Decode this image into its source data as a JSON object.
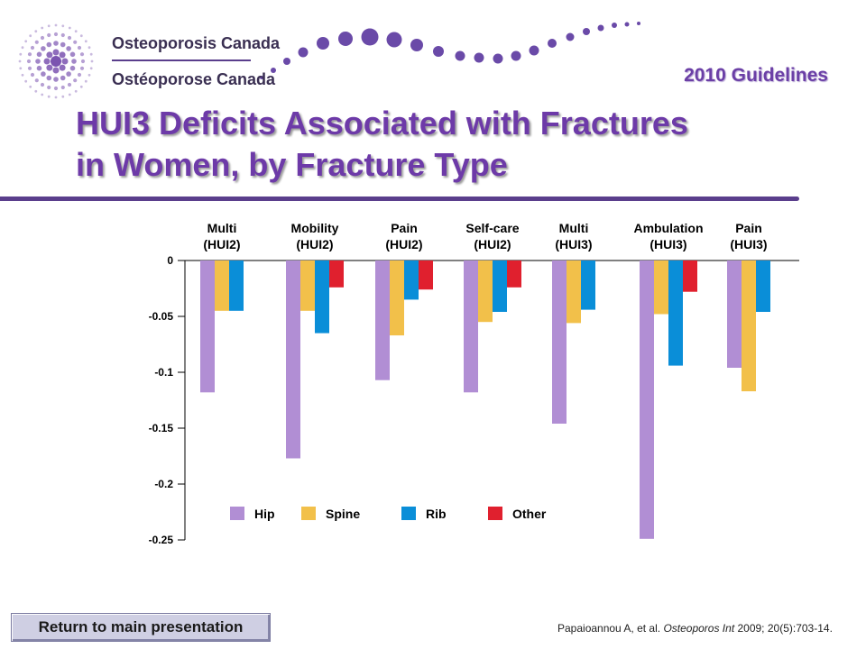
{
  "header": {
    "org_name_en": "Osteoporosis Canada",
    "org_name_fr": "Ostéoporose Canada",
    "guidelines": "2010 Guidelines"
  },
  "title_line1": "HUI3 Deficits Associated with Fractures",
  "title_line2": "in Women, by Fracture Type",
  "chart_data": {
    "type": "bar",
    "categories": [
      [
        "Multi",
        "(HUI2)"
      ],
      [
        "Mobility",
        "(HUI2)"
      ],
      [
        "Pain",
        "(HUI2)"
      ],
      [
        "Self-care",
        "(HUI2)"
      ],
      [
        "Multi",
        "(HUI3)"
      ],
      [
        "Ambulation",
        "(HUI3)"
      ],
      [
        "Pain",
        "(HUI3)"
      ]
    ],
    "series": [
      {
        "name": "Hip",
        "color": "#b18ed4",
        "values": [
          -0.118,
          -0.177,
          -0.107,
          -0.118,
          -0.146,
          -0.249,
          -0.096
        ]
      },
      {
        "name": "Spine",
        "color": "#f2c04a",
        "values": [
          -0.045,
          -0.045,
          -0.067,
          -0.055,
          -0.056,
          -0.048,
          -0.117
        ]
      },
      {
        "name": "Rib",
        "color": "#0a8ed8",
        "values": [
          -0.045,
          -0.065,
          -0.035,
          -0.046,
          -0.044,
          -0.094,
          -0.046
        ]
      },
      {
        "name": "Other",
        "color": "#e0202e",
        "values": [
          null,
          -0.024,
          -0.026,
          -0.024,
          null,
          -0.028,
          null
        ]
      }
    ],
    "yticks": [
      0,
      -0.05,
      -0.1,
      -0.15,
      -0.2,
      -0.25
    ],
    "ytick_labels": [
      "0",
      "-0.05",
      "-0.1",
      "-0.15",
      "-0.2",
      "-0.25"
    ],
    "ylim": [
      -0.25,
      0
    ],
    "legend_position": "bottom-inside",
    "grid": false
  },
  "footer": {
    "return_label": "Return to main presentation",
    "citation_authors": "Papaioannou A, et al. ",
    "citation_journal": "Osteoporos Int",
    "citation_details": " 2009; 20(5):703-14."
  }
}
